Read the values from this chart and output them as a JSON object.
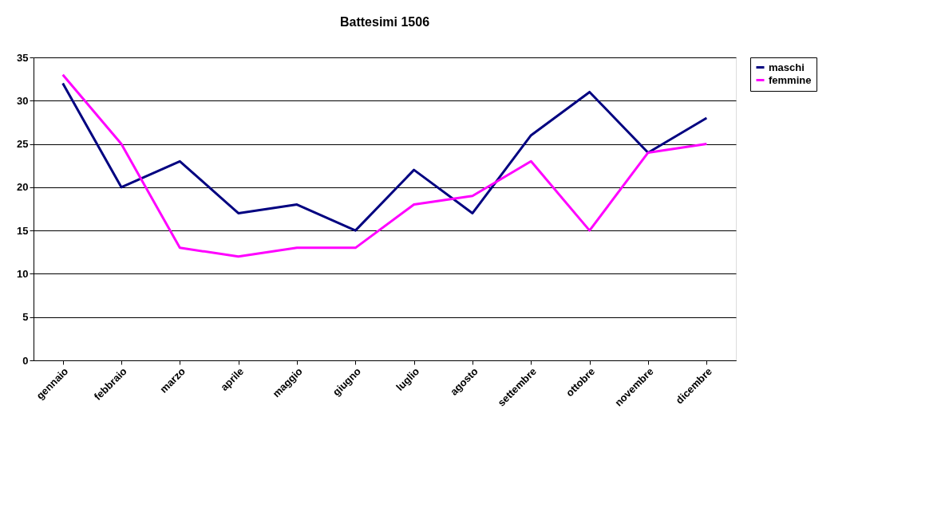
{
  "chart_data": {
    "type": "line",
    "title": "Battesimi  1506",
    "categories": [
      "gennaio",
      "febbraio",
      "marzo",
      "aprile",
      "maggio",
      "giugno",
      "luglio",
      "agosto",
      "settembre",
      "ottobre",
      "novembre",
      "dicembre"
    ],
    "series": [
      {
        "name": "maschi",
        "color": "#000080",
        "values": [
          32,
          20,
          23,
          17,
          18,
          15,
          22,
          17,
          26,
          31,
          24,
          28
        ]
      },
      {
        "name": "femmine",
        "color": "#ff00ff",
        "values": [
          33,
          25,
          13,
          12,
          13,
          13,
          18,
          19,
          23,
          15,
          24,
          25
        ]
      }
    ],
    "ylim": [
      0,
      35
    ],
    "yticks": [
      0,
      5,
      10,
      15,
      20,
      25,
      30,
      35
    ],
    "grid": "y",
    "legend": "right",
    "marker": "none",
    "line_style": "solid"
  }
}
